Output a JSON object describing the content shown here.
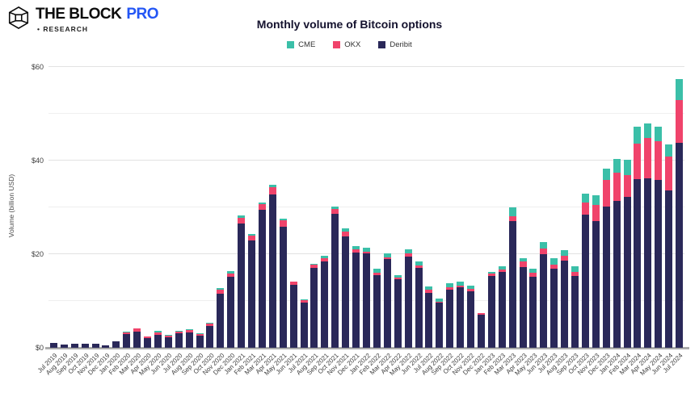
{
  "logo": {
    "brand": "THE BLOCK",
    "tier": "PRO",
    "sub": "RESEARCH",
    "pro_color": "#2356f5"
  },
  "chart_data": {
    "type": "bar",
    "stacked": true,
    "title": "Monthly volume of Bitcoin options",
    "ylabel": "Volume (billion USD)",
    "xlabel": "",
    "ylim": [
      0,
      60
    ],
    "grid": true,
    "gridline_step": 10,
    "legend_position": "top-center",
    "y_ticks": [
      {
        "value": 0,
        "label": "$0"
      },
      {
        "value": 20,
        "label": "$20"
      },
      {
        "value": 40,
        "label": "$40"
      },
      {
        "value": 60,
        "label": "$60"
      }
    ],
    "categories": [
      "Jul 2019",
      "Aug 2019",
      "Sep 2019",
      "Oct 2019",
      "Nov 2019",
      "Dec 2019",
      "Jan 2020",
      "Feb 2020",
      "Mar 2020",
      "Apr 2020",
      "May 2020",
      "Jun 2020",
      "Jul 2020",
      "Aug 2020",
      "Sep 2020",
      "Oct 2020",
      "Nov 2020",
      "Dec 2020",
      "Jan 2021",
      "Feb 2021",
      "Mar 2021",
      "Apr 2021",
      "May 2021",
      "Jun 2021",
      "Jul 2021",
      "Aug 2021",
      "Sep 2021",
      "Oct 2021",
      "Nov 2021",
      "Dec 2021",
      "Jan 2022",
      "Feb 2022",
      "Mar 2022",
      "Apr 2022",
      "May 2022",
      "Jun 2022",
      "Jul 2022",
      "Aug 2022",
      "Sep 2022",
      "Oct 2022",
      "Nov 2022",
      "Dec 2022",
      "Jan 2023",
      "Feb 2023",
      "Mar 2023",
      "Apr 2023",
      "May 2023",
      "Jun 2023",
      "Jul 2023",
      "Aug 2023",
      "Sep 2023",
      "Oct 2023",
      "Nov 2023",
      "Dec 2023",
      "Jan 2024",
      "Feb 2024",
      "Mar 2024",
      "Apr 2024",
      "May 2024",
      "Jun 2024",
      "Jul 2024"
    ],
    "series": [
      {
        "name": "CME",
        "color": "#3bbfa8",
        "values": [
          0,
          0,
          0,
          0,
          0,
          0,
          0.05,
          0.05,
          0.1,
          0.05,
          0.35,
          0.2,
          0.2,
          0.25,
          0.15,
          0.25,
          0.3,
          0.4,
          0.4,
          0.3,
          0.4,
          0.5,
          0.4,
          0.1,
          0.15,
          0.2,
          0.4,
          0.45,
          0.7,
          0.75,
          0.85,
          0.9,
          0.8,
          0.5,
          0.75,
          0.9,
          0.75,
          0.7,
          0.75,
          0.8,
          0.75,
          0.15,
          0.3,
          0.65,
          1.85,
          0.7,
          0.75,
          1.4,
          1.3,
          1.3,
          1.2,
          1.9,
          2.0,
          2.4,
          2.8,
          3.2,
          3.6,
          3.0,
          3.1,
          2.7,
          4.6
        ]
      },
      {
        "name": "OKX",
        "color": "#f0436b",
        "values": [
          0,
          0,
          0,
          0,
          0,
          0,
          0.05,
          0.45,
          0.6,
          0.35,
          0.55,
          0.3,
          0.4,
          0.4,
          0.35,
          0.45,
          0.8,
          0.7,
          1.3,
          1.0,
          1.3,
          1.6,
          1.45,
          0.6,
          0.45,
          0.7,
          0.7,
          1.0,
          1.05,
          0.7,
          0.4,
          0.4,
          0.4,
          0.4,
          0.75,
          0.6,
          0.7,
          0.3,
          0.6,
          0.3,
          0.6,
          0.35,
          0.6,
          0.6,
          1.05,
          1.3,
          1.0,
          1.2,
          0.9,
          0.9,
          0.75,
          2.6,
          3.6,
          5.7,
          6.1,
          4.7,
          7.7,
          8.7,
          8.2,
          7.2,
          9.1
        ]
      },
      {
        "name": "Deribit",
        "color": "#2a2859",
        "values": [
          1.0,
          0.65,
          0.85,
          0.85,
          0.85,
          0.55,
          1.35,
          2.9,
          3.5,
          2.0,
          2.8,
          2.3,
          3.1,
          3.35,
          2.6,
          4.7,
          11.6,
          15.2,
          26.5,
          23.0,
          29.4,
          32.7,
          25.8,
          13.5,
          9.7,
          17.0,
          18.5,
          28.7,
          23.8,
          20.3,
          20.2,
          15.6,
          19.0,
          14.6,
          19.5,
          17.0,
          11.7,
          9.6,
          12.4,
          13.0,
          12.0,
          7.0,
          15.3,
          16.2,
          27.1,
          17.2,
          15.1,
          20.0,
          16.9,
          18.7,
          15.4,
          28.4,
          27.0,
          30.2,
          31.4,
          32.2,
          36.0,
          36.2,
          35.9,
          33.6,
          43.8
        ]
      }
    ],
    "stack_order_bottom_to_top": [
      "Deribit",
      "OKX",
      "CME"
    ]
  }
}
